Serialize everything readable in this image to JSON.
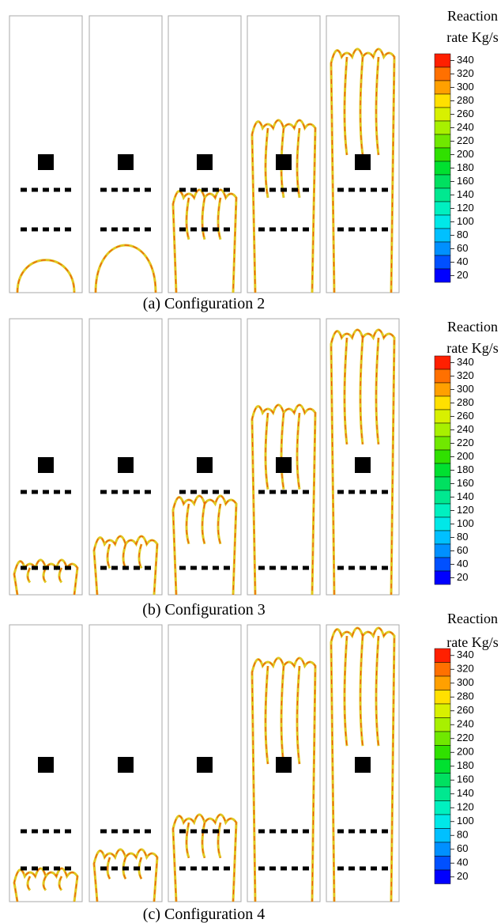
{
  "panels": [
    {
      "caption": "(a) Configuration 2",
      "colorbar": {
        "title": [
          "Reaction",
          "rate Kg/s"
        ],
        "ticks": [
          340,
          320,
          300,
          280,
          260,
          240,
          220,
          200,
          180,
          160,
          140,
          120,
          100,
          80,
          60,
          40,
          20
        ]
      }
    },
    {
      "caption": "(b) Configuration 3",
      "colorbar": {
        "title": [
          "Reaction",
          "rate Kg/s"
        ],
        "ticks": [
          340,
          320,
          300,
          280,
          260,
          240,
          220,
          200,
          180,
          160,
          140,
          120,
          100,
          80,
          60,
          40,
          20
        ]
      }
    },
    {
      "caption": "(c) Configuration 4",
      "colorbar": {
        "title": [
          "Reaction",
          "rate Kg/s"
        ],
        "ticks": [
          340,
          320,
          300,
          280,
          260,
          240,
          220,
          200,
          180,
          160,
          140,
          120,
          100,
          80,
          60,
          40,
          20
        ]
      }
    }
  ],
  "colorbar_colors": [
    "#ff2000",
    "#ff7000",
    "#ffa000",
    "#ffe000",
    "#d8f000",
    "#a8f000",
    "#70e800",
    "#30e000",
    "#00e030",
    "#00e060",
    "#00e890",
    "#00f0c0",
    "#00e8e8",
    "#00c0ff",
    "#0090ff",
    "#0050ff",
    "#0000ff"
  ]
}
